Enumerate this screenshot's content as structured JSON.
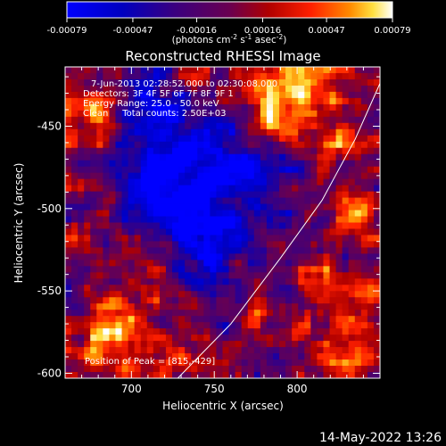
{
  "chart_data": {
    "type": "heatmap",
    "title": "Reconstructed RHESSI Image",
    "xlabel": "Heliocentric X (arcsec)",
    "ylabel": "Heliocentric Y (arcsec)",
    "xlim": [
      660,
      850
    ],
    "ylim": [
      -603,
      -414
    ],
    "x_ticks": [
      700,
      750,
      800
    ],
    "y_ticks": [
      -450,
      -500,
      -550,
      -600
    ],
    "colorbar": {
      "range": [
        -0.00079,
        0.00079
      ],
      "tick_values": [
        -0.00079,
        -0.00047,
        -0.00016,
        0.00016,
        0.00047,
        0.00079
      ],
      "tick_labels": [
        "-0.00079",
        "-0.00047",
        "-0.00016",
        "0.00016",
        "0.00047",
        "0.00079"
      ],
      "units_main": "(photons cm",
      "units_exp1": "-2",
      "units_mid": " s",
      "units_exp2": "-1",
      "units_end": " asec",
      "units_exp3": "-2",
      "units_close": ")"
    },
    "annotations": {
      "time": "7-Jun-2013 02:28:52.000 to 02:30:08.000",
      "detectors": "Detectors: 3F 4F 5F 6F 7F 8F 9F 1",
      "energy": "Energy Range: 25.0 - 50.0 keV",
      "clean": "Clean     Total counts: 2.50E+03",
      "peak": "Position of Peak = [815,-429]"
    },
    "peak_position": [
      815,
      -429
    ],
    "limb_curve": [
      [
        728,
        -603
      ],
      [
        760,
        -570
      ],
      [
        790,
        -530
      ],
      [
        815,
        -495
      ],
      [
        835,
        -458
      ],
      [
        850,
        -424
      ]
    ],
    "grid_shape": [
      50,
      50
    ],
    "hot_regions": [
      {
        "x": 672,
        "y": -445,
        "r": 20,
        "a": 1.0
      },
      {
        "x": 667,
        "y": -505,
        "r": 18,
        "a": 0.5
      },
      {
        "x": 690,
        "y": -575,
        "r": 25,
        "a": 0.9
      },
      {
        "x": 705,
        "y": -532,
        "r": 15,
        "a": 0.5
      },
      {
        "x": 725,
        "y": -590,
        "r": 15,
        "a": 0.7
      },
      {
        "x": 742,
        "y": -420,
        "r": 10,
        "a": 0.6
      },
      {
        "x": 800,
        "y": -422,
        "r": 30,
        "a": 1.0
      },
      {
        "x": 790,
        "y": -442,
        "r": 18,
        "a": 0.55
      },
      {
        "x": 828,
        "y": -462,
        "r": 15,
        "a": 0.55
      },
      {
        "x": 825,
        "y": -500,
        "r": 14,
        "a": 0.65
      },
      {
        "x": 843,
        "y": -505,
        "r": 14,
        "a": 0.55
      },
      {
        "x": 812,
        "y": -540,
        "r": 12,
        "a": 0.55
      },
      {
        "x": 835,
        "y": -560,
        "r": 20,
        "a": 0.7
      },
      {
        "x": 800,
        "y": -575,
        "r": 15,
        "a": 0.6
      },
      {
        "x": 830,
        "y": -592,
        "r": 14,
        "a": 0.8
      },
      {
        "x": 773,
        "y": -560,
        "r": 12,
        "a": 0.5
      }
    ],
    "cold_regions": [
      {
        "x": 725,
        "y": -465,
        "r": 35,
        "a": -1.0
      },
      {
        "x": 745,
        "y": -510,
        "r": 28,
        "a": -0.8
      },
      {
        "x": 710,
        "y": -500,
        "r": 20,
        "a": -0.5
      },
      {
        "x": 770,
        "y": -480,
        "r": 20,
        "a": -0.6
      }
    ]
  },
  "footer": {
    "timestamp": "14-May-2022 13:26"
  }
}
